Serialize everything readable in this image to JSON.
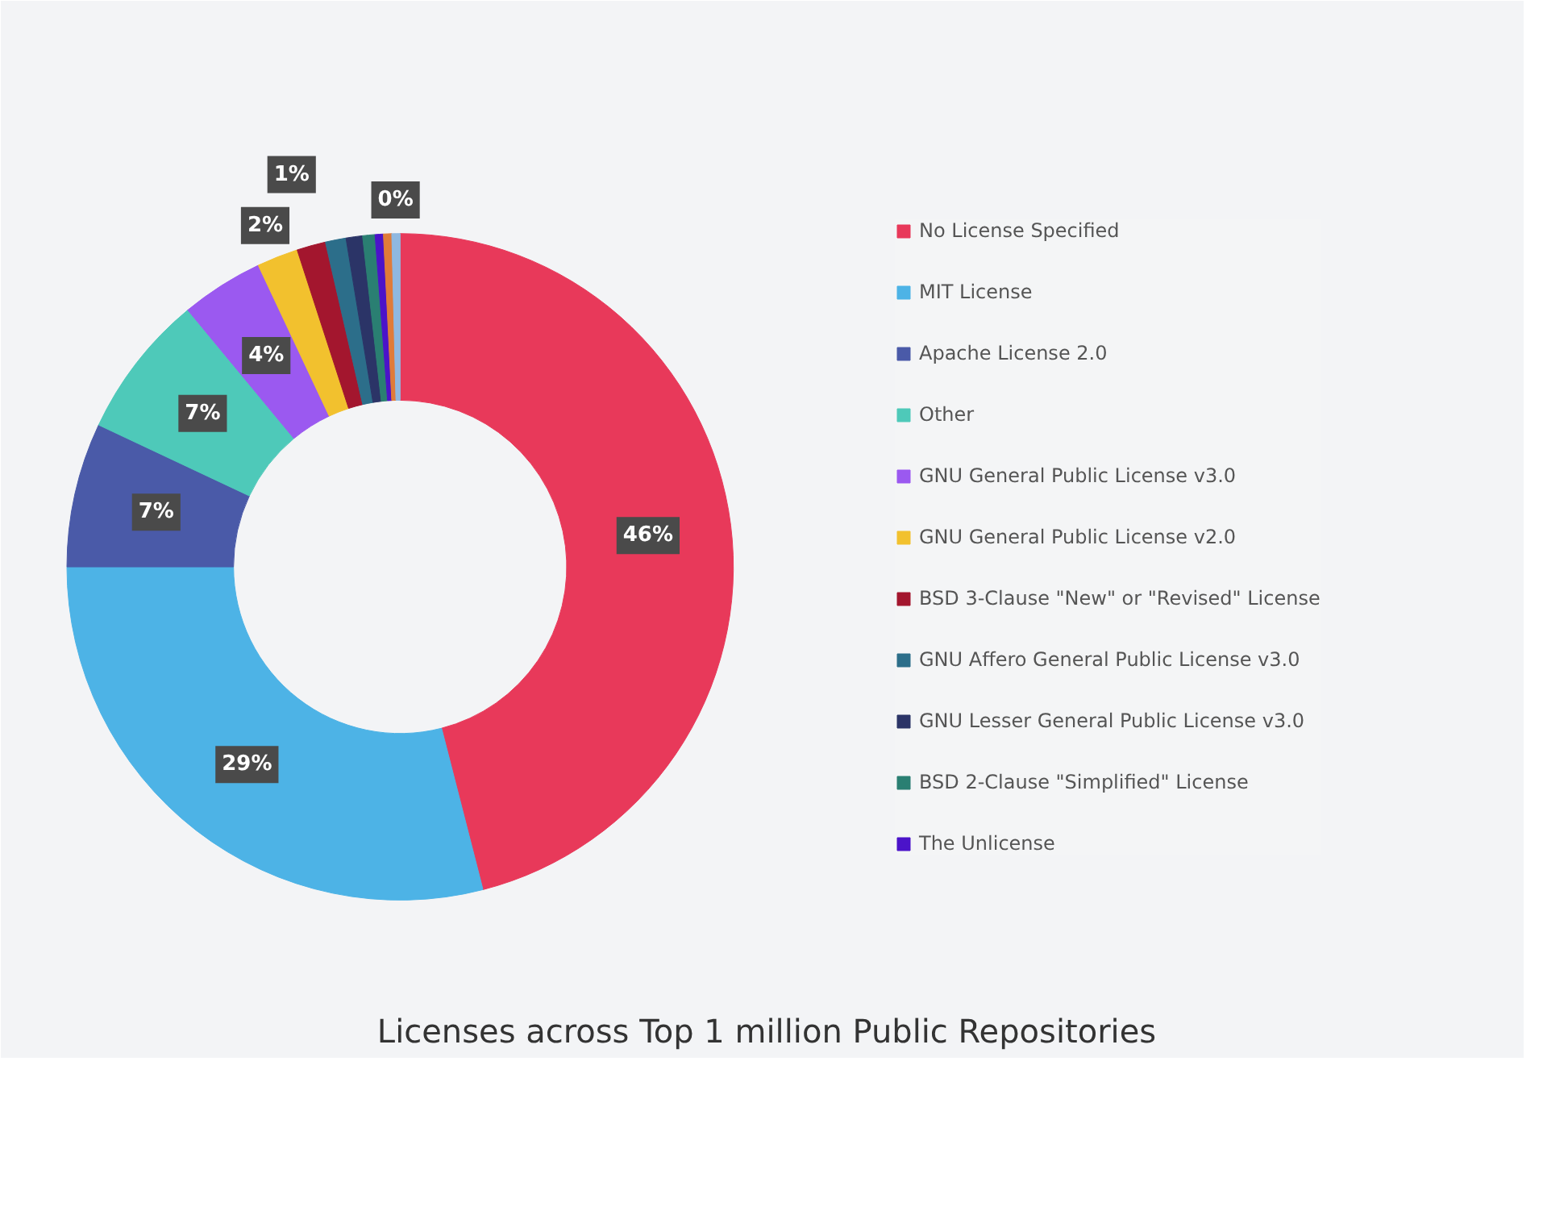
{
  "chart_data": {
    "type": "donut",
    "title": "Licenses across Top 1 million Public Repositories",
    "categories": [
      "No License Specified",
      "MIT License",
      "Apache License 2.0",
      "Other",
      "GNU General Public License v3.0",
      "GNU General Public License v2.0",
      "BSD 3-Clause \"New\" or \"Revised\" License",
      "GNU Affero General Public License v3.0",
      "GNU Lesser General Public License v3.0",
      "BSD 2-Clause \"Simplified\" License",
      "The Unlicense",
      null,
      null
    ],
    "values": [
      46,
      29,
      7,
      7,
      4,
      2,
      1.4,
      1.0,
      0.8,
      0.6,
      0.4,
      0.4,
      0.4
    ],
    "colors": [
      "#e8395a",
      "#4db3e6",
      "#4a5aa8",
      "#4ec9b9",
      "#9b59f0",
      "#f2c12e",
      "#a3162e",
      "#2c6e8a",
      "#2b3467",
      "#2a7f72",
      "#4b13c9",
      "#e07b39",
      "#8fb8e0"
    ],
    "value_labels": [
      "46%",
      "29%",
      "7%",
      "7%",
      "4%",
      "2%",
      "1%",
      null,
      null,
      null,
      null,
      null,
      "0%"
    ],
    "legend": "right"
  }
}
